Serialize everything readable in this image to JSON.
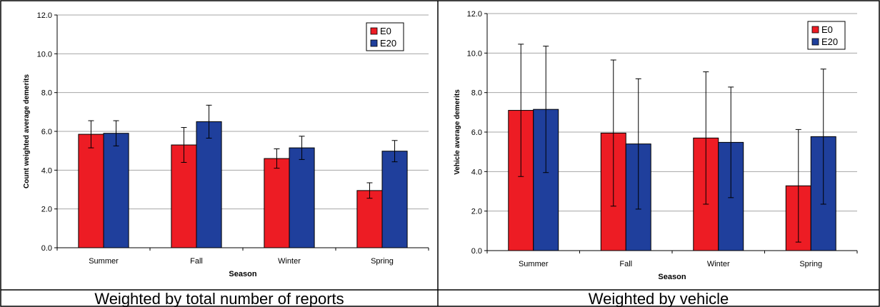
{
  "colors": {
    "E0": "#ed1c24",
    "E20": "#1f3f9c",
    "grid": "#a6a6a6"
  },
  "chart_data": [
    {
      "type": "bar",
      "categories": [
        "Summer",
        "Fall",
        "Winter",
        "Spring"
      ],
      "series": [
        {
          "name": "E0",
          "values": [
            5.85,
            5.3,
            4.6,
            2.95
          ],
          "error": [
            0.7,
            0.9,
            0.5,
            0.4
          ]
        },
        {
          "name": "E20",
          "values": [
            5.9,
            6.5,
            5.15,
            4.98
          ],
          "error": [
            0.65,
            0.85,
            0.6,
            0.55
          ]
        }
      ],
      "xlabel": "Season",
      "ylabel": "Count weighted average demerits",
      "ylim": [
        0,
        12
      ],
      "yticks": [
        "0.0",
        "2.0",
        "4.0",
        "6.0",
        "8.0",
        "10.0",
        "12.0"
      ],
      "grid": true,
      "legend": "top-right",
      "caption": "Weighted by total number of reports"
    },
    {
      "type": "bar",
      "categories": [
        "Summer",
        "Fall",
        "Winter",
        "Spring"
      ],
      "series": [
        {
          "name": "E0",
          "values": [
            7.1,
            5.95,
            5.7,
            3.28
          ],
          "error": [
            3.35,
            3.7,
            3.35,
            2.85
          ]
        },
        {
          "name": "E20",
          "values": [
            7.15,
            5.4,
            5.48,
            5.77
          ],
          "error": [
            3.2,
            3.3,
            2.8,
            3.42
          ]
        }
      ],
      "xlabel": "Season",
      "ylabel": "Vehicle average demerits",
      "ylim": [
        0,
        12
      ],
      "yticks": [
        "0.0",
        "2.0",
        "4.0",
        "6.0",
        "8.0",
        "10.0",
        "12.0"
      ],
      "grid": true,
      "legend": "top-right",
      "caption": "Weighted by vehicle"
    }
  ]
}
